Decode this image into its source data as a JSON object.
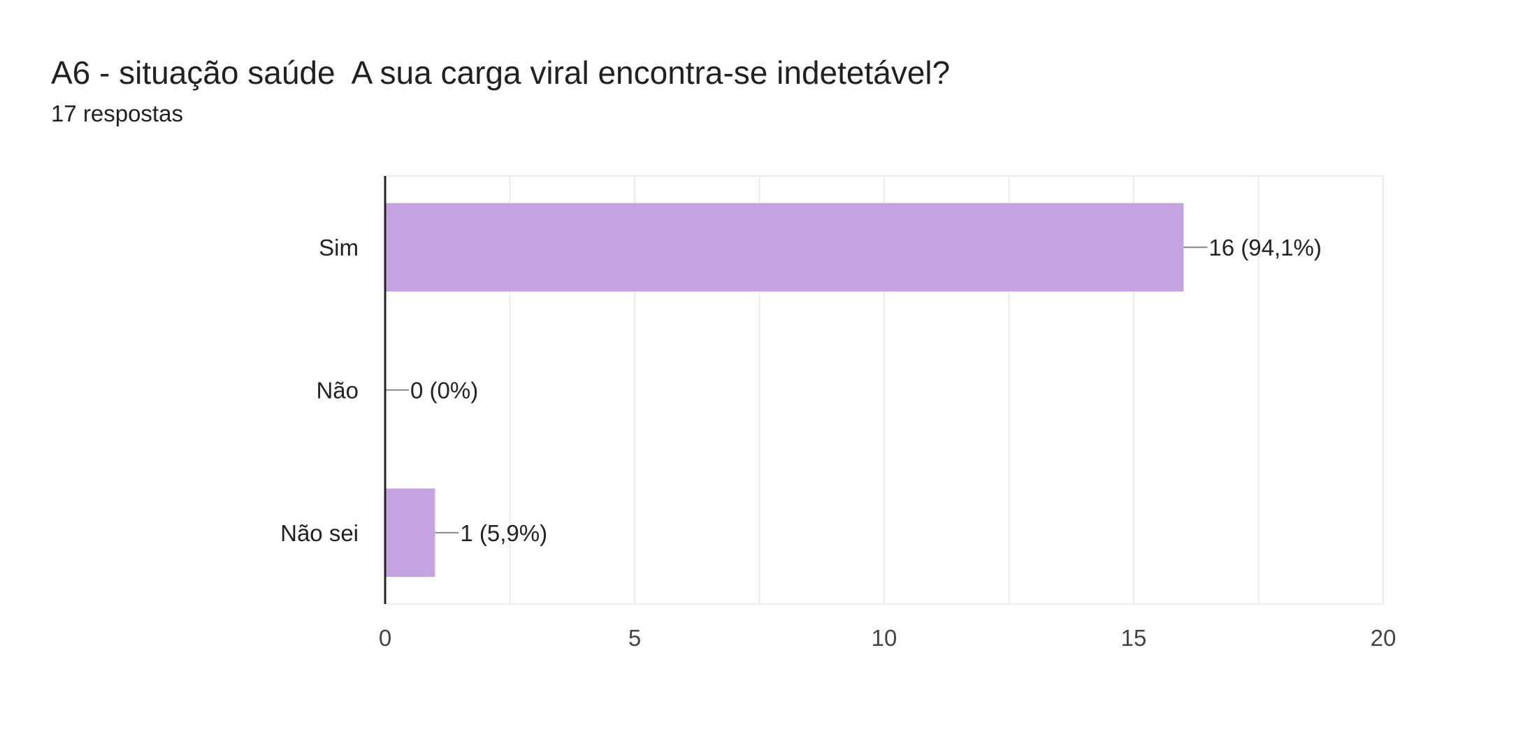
{
  "header": {
    "title": "A6 - situação saúde  A sua carga viral encontra-se indetetável?",
    "response_count": "17 respostas"
  },
  "chart_data": {
    "type": "bar",
    "orientation": "horizontal",
    "categories": [
      "Sim",
      "Não",
      "Não sei"
    ],
    "values": [
      16,
      0,
      1
    ],
    "data_labels": [
      "16 (94,1%)",
      "0 (0%)",
      "1 (5,9%)"
    ],
    "xlim": [
      0,
      20
    ],
    "x_ticks": [
      0,
      5,
      10,
      15,
      20
    ],
    "x_tick_labels": [
      "0",
      "5",
      "10",
      "15",
      "20"
    ],
    "grid": true,
    "colors": {
      "bar": "#c4a2e0",
      "axis": "#222222",
      "grid": "#ececec",
      "leader": "#888888"
    }
  }
}
